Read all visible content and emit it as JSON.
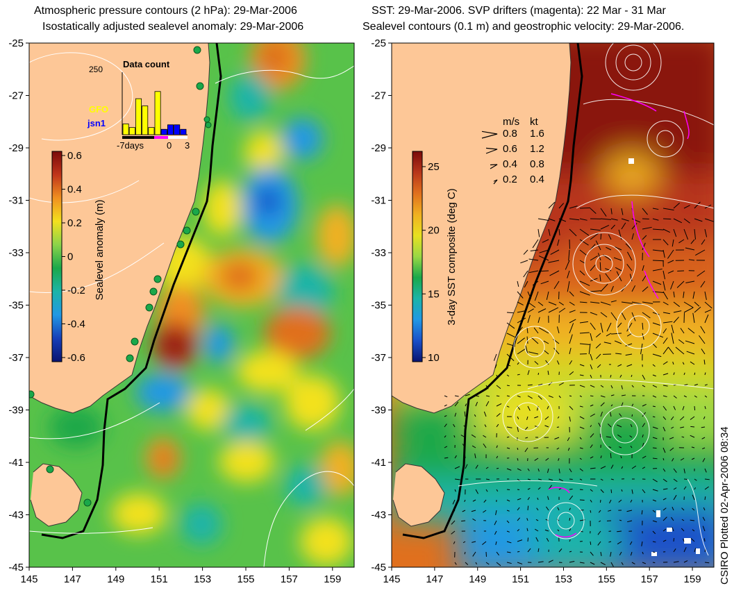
{
  "titles": {
    "left_line1": "Atmospheric pressure contours (2 hPa): 29-Mar-2006",
    "left_line2": "Isostatically adjusted sealevel anomaly: 29-Mar-2006",
    "right_line1": "SST: 29-Mar-2006. SVP drifters (magenta): 22 Mar - 31 Mar",
    "right_line2": "Sealevel contours (0.1 m) and geostrophic velocity: 29-Mar-2006."
  },
  "axes": {
    "x_ticks": [
      "145",
      "147",
      "149",
      "151",
      "153",
      "155",
      "157",
      "159"
    ],
    "y_ticks": [
      "-25",
      "-27",
      "-29",
      "-31",
      "-33",
      "-35",
      "-37",
      "-39",
      "-41",
      "-43",
      "-45"
    ]
  },
  "left_colorbar": {
    "label": "Sealevel anomaly (m)",
    "ticks": [
      "0.6",
      "0.4",
      "0.2",
      "0",
      "-0.2",
      "-0.4",
      "-0.6"
    ],
    "stops": [
      "#7a0a0a",
      "#c0351a",
      "#f09020",
      "#f3e11e",
      "#8bd34a",
      "#1aa84a",
      "#1cb4a8",
      "#2298e4",
      "#163fb8",
      "#0a1470"
    ]
  },
  "right_colorbar": {
    "label": "3-day SST composite (deg C)",
    "ticks": [
      "25",
      "20",
      "15",
      "10"
    ],
    "stops": [
      "#7a0a0a",
      "#b8361a",
      "#e0701e",
      "#f0b020",
      "#e8e020",
      "#9ad844",
      "#1aa84a",
      "#1cb4a8",
      "#2298e4",
      "#1a50c8",
      "#0a1470"
    ]
  },
  "data_count": {
    "title": "Data count",
    "max_label": "250",
    "legend_gfo": "GFO",
    "legend_jsn1": "jsn1",
    "gfo_color": "#ffff00",
    "jsn1_color": "#0000ff",
    "xlabel_left": "-7days",
    "xlabel_mid": "0",
    "xlabel_right": "3",
    "gfo_values": [
      0.3,
      0.2,
      1.0,
      0.8,
      0.2,
      1.2,
      0.1,
      0.0,
      0.0,
      0.0
    ],
    "jsn1_values": [
      0.0,
      0.0,
      0.0,
      0.0,
      0.0,
      0.0,
      0.3,
      0.55,
      0.55,
      0.3
    ]
  },
  "velocity_legend": {
    "col_ms": "m/s",
    "col_kt": "kt",
    "rows": [
      {
        "ms": "0.8",
        "kt": "1.6"
      },
      {
        "ms": "0.6",
        "kt": "1.2"
      },
      {
        "ms": "0.4",
        "kt": "0.8"
      },
      {
        "ms": "0.2",
        "kt": "0.4"
      }
    ]
  },
  "credit": "CSIRO Plotted 02-Apr-2006 08:34",
  "colors": {
    "land": "#fdc797",
    "coast": "#000000",
    "contour": "#ffffff",
    "drifter": "#ff00ff",
    "tide_gauge": "#1aa84a"
  }
}
